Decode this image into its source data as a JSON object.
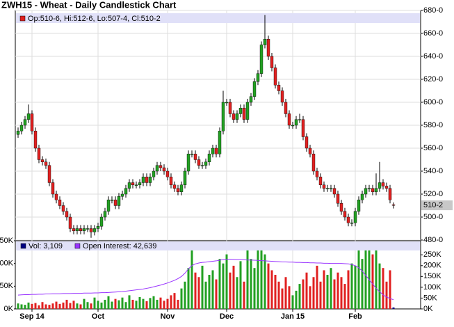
{
  "chart_data": [
    {
      "type": "candlestick",
      "title": "ZWH15 - Wheat - Daily Candlestick Chart",
      "info": "Op:510-6, Hi:512-6, Lo:507-4, Cl:510-2",
      "last_label": "510-2",
      "up_color": "#22a022",
      "down_color": "#e02020",
      "open": [
        572,
        575,
        580,
        585,
        590,
        575,
        560,
        550,
        548,
        545,
        530,
        520,
        515,
        510,
        505,
        500,
        490,
        488,
        490,
        488,
        490,
        490,
        487,
        490,
        492,
        500,
        505,
        515,
        515,
        510,
        518,
        520,
        525,
        530,
        528,
        528,
        530,
        535,
        530,
        535,
        540,
        545,
        543,
        540,
        535,
        528,
        525,
        522,
        528,
        540,
        555,
        555,
        550,
        545,
        545,
        548,
        555,
        560,
        555,
        575,
        600,
        600,
        590,
        585,
        590,
        595,
        585,
        600,
        605,
        618,
        625,
        650,
        655,
        640,
        630,
        615,
        610,
        600,
        590,
        580,
        580,
        585,
        585,
        570,
        560,
        555,
        540,
        535,
        528,
        525,
        525,
        525,
        520,
        512,
        505,
        500,
        495,
        495,
        505,
        515,
        520,
        525,
        525,
        522,
        525,
        530,
        527,
        525,
        510.75
      ],
      "high": [
        578,
        583,
        588,
        598,
        593,
        578,
        563,
        553,
        551,
        548,
        533,
        523,
        518,
        513,
        508,
        503,
        493,
        493,
        493,
        493,
        493,
        493,
        493,
        495,
        503,
        508,
        518,
        518,
        518,
        521,
        523,
        528,
        533,
        533,
        531,
        533,
        538,
        538,
        538,
        543,
        548,
        548,
        546,
        543,
        538,
        531,
        528,
        531,
        543,
        558,
        558,
        558,
        553,
        548,
        551,
        558,
        563,
        563,
        578,
        610,
        603,
        603,
        593,
        593,
        598,
        598,
        603,
        608,
        621,
        628,
        653,
        676,
        658,
        643,
        633,
        618,
        613,
        603,
        593,
        583,
        588,
        590,
        588,
        573,
        563,
        558,
        543,
        538,
        531,
        528,
        528,
        528,
        523,
        515,
        508,
        503,
        498,
        508,
        518,
        523,
        528,
        528,
        528,
        538,
        548,
        533,
        530,
        528,
        512.75
      ],
      "low": [
        569,
        572,
        577,
        582,
        572,
        557,
        547,
        545,
        542,
        527,
        517,
        512,
        507,
        502,
        497,
        487,
        485,
        485,
        485,
        485,
        487,
        482,
        484,
        487,
        489,
        497,
        502,
        512,
        507,
        507,
        515,
        517,
        522,
        525,
        525,
        525,
        527,
        527,
        527,
        532,
        537,
        540,
        537,
        532,
        525,
        522,
        519,
        519,
        525,
        537,
        552,
        547,
        542,
        542,
        542,
        545,
        552,
        552,
        552,
        572,
        597,
        587,
        582,
        582,
        587,
        582,
        582,
        597,
        602,
        615,
        622,
        647,
        637,
        627,
        612,
        607,
        597,
        587,
        577,
        577,
        577,
        582,
        567,
        557,
        552,
        537,
        532,
        525,
        522,
        522,
        522,
        517,
        509,
        502,
        497,
        492,
        492,
        492,
        502,
        512,
        517,
        522,
        519,
        519,
        522,
        524,
        522,
        512,
        507.5
      ],
      "close": [
        575,
        580,
        585,
        590,
        575,
        560,
        550,
        548,
        545,
        530,
        520,
        515,
        510,
        505,
        500,
        490,
        488,
        490,
        488,
        490,
        490,
        487,
        490,
        492,
        500,
        505,
        515,
        515,
        510,
        518,
        520,
        525,
        530,
        528,
        528,
        530,
        535,
        530,
        535,
        540,
        545,
        543,
        540,
        535,
        528,
        525,
        522,
        528,
        540,
        555,
        555,
        550,
        545,
        545,
        548,
        555,
        560,
        555,
        575,
        600,
        600,
        590,
        585,
        590,
        595,
        585,
        600,
        605,
        618,
        625,
        650,
        655,
        640,
        630,
        615,
        610,
        600,
        590,
        580,
        580,
        585,
        585,
        570,
        560,
        555,
        540,
        535,
        528,
        525,
        525,
        525,
        520,
        512,
        505,
        500,
        495,
        495,
        505,
        515,
        520,
        525,
        525,
        522,
        525,
        530,
        527,
        525,
        515,
        510.25
      ],
      "ylim": [
        480,
        680
      ],
      "yticks": [
        {
          "value": 480,
          "label": "480-0"
        },
        {
          "value": 500,
          "label": "500-0"
        },
        {
          "value": 520,
          "label": "520-0"
        },
        {
          "value": 540,
          "label": "540-0"
        },
        {
          "value": 560,
          "label": "560-0"
        },
        {
          "value": 580,
          "label": "580-0"
        },
        {
          "value": 600,
          "label": "600-0"
        },
        {
          "value": 620,
          "label": "620-0"
        },
        {
          "value": 640,
          "label": "640-0"
        },
        {
          "value": 660,
          "label": "660-0"
        },
        {
          "value": 680,
          "label": "680-0"
        }
      ],
      "xlim": [
        -0.8,
        115.8
      ],
      "xticks": [
        {
          "value": 4,
          "label": "Sep 14"
        },
        {
          "value": 23,
          "label": "Oct"
        },
        {
          "value": 43,
          "label": "Nov"
        },
        {
          "value": 60,
          "label": "Dec"
        },
        {
          "value": 79,
          "label": "Jan 15"
        },
        {
          "value": 97,
          "label": "Feb"
        }
      ],
      "grid": true
    },
    {
      "type": "bar",
      "series": [
        {
          "name": "Vol: 3,109",
          "color": "#000080",
          "values": [
            12000,
            10000,
            9000,
            14000,
            11000,
            13000,
            8000,
            15000,
            10000,
            9000,
            12000,
            16000,
            11000,
            14000,
            20000,
            13000,
            18000,
            12000,
            10000,
            22000,
            15000,
            12000,
            25000,
            18000,
            14000,
            20000,
            28000,
            16000,
            22000,
            19000,
            25000,
            15000,
            30000,
            20000,
            18000,
            26000,
            22000,
            17000,
            24000,
            28000,
            20000,
            25000,
            18000,
            22000,
            30000,
            35000,
            20000,
            45000,
            60000,
            90000,
            135000,
            80000,
            70000,
            95000,
            60000,
            75000,
            85000,
            65000,
            110000,
            100000,
            120000,
            80000,
            95000,
            70000,
            105000,
            60000,
            130000,
            110000,
            90000,
            140000,
            145000,
            120000,
            100000,
            85000,
            75000,
            60000,
            45000,
            70000,
            50000,
            30000,
            40000,
            55000,
            65000,
            80000,
            50000,
            70000,
            95000,
            60000,
            85000,
            75000,
            90000,
            65000,
            80000,
            70000,
            55000,
            85000,
            100000,
            95000,
            130000,
            110000,
            140000,
            135000,
            120000,
            130000,
            100000,
            90000,
            60000,
            85000,
            3109
          ]
        },
        {
          "name": "Open Interest: 42,639",
          "color": "#9933ff",
          "axis": "y2",
          "values": [
            64000,
            65000,
            66000,
            66000,
            67000,
            67000,
            68000,
            68000,
            69000,
            69000,
            70000,
            70000,
            70000,
            71000,
            71000,
            71000,
            72000,
            72000,
            72000,
            73000,
            73000,
            73000,
            74000,
            74000,
            75000,
            75000,
            76000,
            77000,
            78000,
            79000,
            80000,
            82000,
            84000,
            86000,
            88000,
            90000,
            92000,
            95000,
            98000,
            102000,
            106000,
            110000,
            115000,
            120000,
            126000,
            132000,
            140000,
            150000,
            165000,
            185000,
            200000,
            208000,
            212000,
            215000,
            216000,
            218000,
            220000,
            222000,
            225000,
            228000,
            230000,
            230000,
            229000,
            228000,
            228000,
            227000,
            226000,
            226000,
            225000,
            224000,
            223000,
            222000,
            221000,
            220000,
            219000,
            218000,
            217000,
            217000,
            216000,
            216000,
            215000,
            215000,
            214000,
            214000,
            213000,
            213000,
            212000,
            212000,
            211000,
            211000,
            210000,
            210000,
            210000,
            210000,
            209000,
            208000,
            205000,
            200000,
            190000,
            175000,
            155000,
            135000,
            115000,
            95000,
            80000,
            65000,
            55000,
            48000,
            42639
          ]
        }
      ],
      "ylim": [
        0,
        150000
      ],
      "yticks": [
        {
          "value": 0,
          "label": "0K"
        },
        {
          "value": 50000,
          "label": "50K"
        },
        {
          "value": 100000,
          "label": "100K"
        },
        {
          "value": 150000,
          "label": "150K"
        }
      ],
      "y2lim": [
        0,
        315000
      ],
      "y2ticks": [
        {
          "value": 0,
          "label": "0K"
        },
        {
          "value": 50000,
          "label": "50K"
        },
        {
          "value": 100000,
          "label": "100K"
        },
        {
          "value": 150000,
          "label": "150K"
        },
        {
          "value": 200000,
          "label": "200K"
        },
        {
          "value": 250000,
          "label": "250K"
        }
      ]
    }
  ]
}
